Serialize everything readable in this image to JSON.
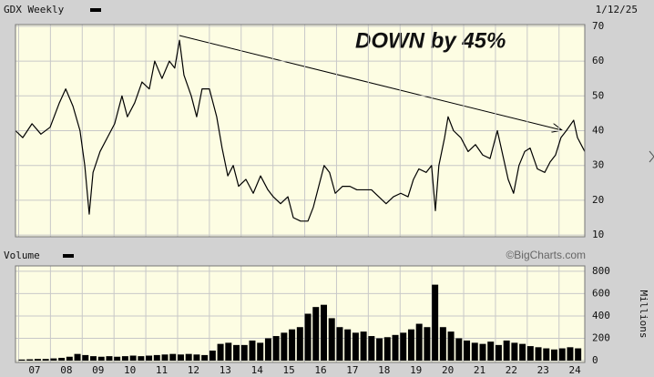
{
  "chart_data": [
    {
      "type": "line",
      "title": "GDX Weekly",
      "date": "1/12/25",
      "annotation": "DOWN by 45%",
      "color": "#000000",
      "x": [
        2006.9,
        2007.13,
        2007.42,
        2007.7,
        2007.99,
        2008.28,
        2008.48,
        2008.71,
        2008.93,
        2009.08,
        2009.22,
        2009.34,
        2009.56,
        2009.79,
        2010.02,
        2010.25,
        2010.42,
        2010.65,
        2010.88,
        2011.11,
        2011.28,
        2011.51,
        2011.74,
        2011.91,
        2012.06,
        2012.2,
        2012.43,
        2012.6,
        2012.77,
        2013.0,
        2013.23,
        2013.4,
        2013.58,
        2013.75,
        2013.92,
        2014.15,
        2014.38,
        2014.61,
        2014.84,
        2015.01,
        2015.24,
        2015.47,
        2015.64,
        2015.87,
        2016.1,
        2016.27,
        2016.44,
        2016.61,
        2016.78,
        2016.96,
        2017.19,
        2017.42,
        2017.64,
        2017.87,
        2018.1,
        2018.33,
        2018.56,
        2018.79,
        2019.02,
        2019.25,
        2019.42,
        2019.59,
        2019.82,
        2019.99,
        2020.11,
        2020.22,
        2020.4,
        2020.51,
        2020.68,
        2020.91,
        2021.14,
        2021.37,
        2021.6,
        2021.83,
        2022.06,
        2022.23,
        2022.4,
        2022.57,
        2022.74,
        2022.92,
        2023.09,
        2023.32,
        2023.55,
        2023.72,
        2023.89,
        2024.06,
        2024.23,
        2024.46,
        2024.58,
        2024.81
      ],
      "values": [
        40,
        38,
        42,
        39,
        41,
        48,
        52,
        47,
        40,
        30,
        16,
        28,
        34,
        38,
        42,
        50,
        44,
        48,
        54,
        52,
        60,
        55,
        60,
        58,
        66,
        56,
        50,
        44,
        52,
        52,
        44,
        35,
        27,
        30,
        24,
        26,
        22,
        27,
        23,
        21,
        19,
        21,
        15,
        14,
        14,
        18,
        24,
        30,
        28,
        22,
        24,
        24,
        23,
        23,
        23,
        21,
        19,
        21,
        22,
        21,
        26,
        29,
        28,
        30,
        17,
        30,
        38,
        44,
        40,
        38,
        34,
        36,
        33,
        32,
        40,
        33,
        26,
        22,
        30,
        34,
        35,
        29,
        28,
        31,
        33,
        38,
        40,
        43,
        38,
        34
      ],
      "ylim": [
        9.5,
        70.5
      ],
      "yticks": [
        10,
        20,
        30,
        40,
        50,
        60,
        70
      ],
      "grid": true
    },
    {
      "type": "bar",
      "title": "Volume",
      "source": "©BigCharts.com",
      "ylabel": "Millions",
      "color": "#000000",
      "x": [
        2007.0,
        2007.25,
        2007.5,
        2007.75,
        2008.0,
        2008.25,
        2008.5,
        2008.75,
        2009.0,
        2009.25,
        2009.5,
        2009.75,
        2010.0,
        2010.25,
        2010.5,
        2010.75,
        2011.0,
        2011.25,
        2011.5,
        2011.75,
        2012.0,
        2012.25,
        2012.5,
        2012.75,
        2013.0,
        2013.25,
        2013.5,
        2013.75,
        2014.0,
        2014.25,
        2014.5,
        2014.75,
        2015.0,
        2015.25,
        2015.5,
        2015.75,
        2016.0,
        2016.25,
        2016.5,
        2016.75,
        2017.0,
        2017.25,
        2017.5,
        2017.75,
        2018.0,
        2018.25,
        2018.5,
        2018.75,
        2019.0,
        2019.25,
        2019.5,
        2019.75,
        2020.0,
        2020.25,
        2020.5,
        2020.75,
        2021.0,
        2021.25,
        2021.5,
        2021.75,
        2022.0,
        2022.25,
        2022.5,
        2022.75,
        2023.0,
        2023.25,
        2023.5,
        2023.75,
        2024.0,
        2024.25,
        2024.5
      ],
      "values": [
        10,
        12,
        15,
        15,
        20,
        25,
        35,
        60,
        50,
        40,
        35,
        40,
        35,
        40,
        45,
        40,
        45,
        50,
        55,
        60,
        55,
        60,
        55,
        50,
        90,
        150,
        160,
        140,
        140,
        180,
        160,
        200,
        220,
        250,
        280,
        300,
        420,
        480,
        500,
        380,
        300,
        280,
        250,
        260,
        220,
        200,
        210,
        230,
        250,
        280,
        330,
        300,
        680,
        300,
        260,
        200,
        180,
        160,
        150,
        170,
        140,
        180,
        160,
        150,
        130,
        120,
        110,
        100,
        110,
        120,
        110
      ],
      "ylim": [
        -16,
        848
      ],
      "yticks": [
        0,
        200,
        400,
        600,
        800
      ],
      "grid": true,
      "xlim": [
        2006.9,
        2024.81
      ],
      "xticks": [
        {
          "value": 2007,
          "label": "07"
        },
        {
          "value": 2008,
          "label": "08"
        },
        {
          "value": 2009,
          "label": "09"
        },
        {
          "value": 2010,
          "label": "10"
        },
        {
          "value": 2011,
          "label": "11"
        },
        {
          "value": 2012,
          "label": "12"
        },
        {
          "value": 2013,
          "label": "13"
        },
        {
          "value": 2014,
          "label": "14"
        },
        {
          "value": 2015,
          "label": "15"
        },
        {
          "value": 2016,
          "label": "16"
        },
        {
          "value": 2017,
          "label": "17"
        },
        {
          "value": 2018,
          "label": "18"
        },
        {
          "value": 2019,
          "label": "19"
        },
        {
          "value": 2020,
          "label": "20"
        },
        {
          "value": 2021,
          "label": "21"
        },
        {
          "value": 2022,
          "label": "22"
        },
        {
          "value": 2023,
          "label": "23"
        },
        {
          "value": 2024,
          "label": "24"
        }
      ]
    }
  ]
}
